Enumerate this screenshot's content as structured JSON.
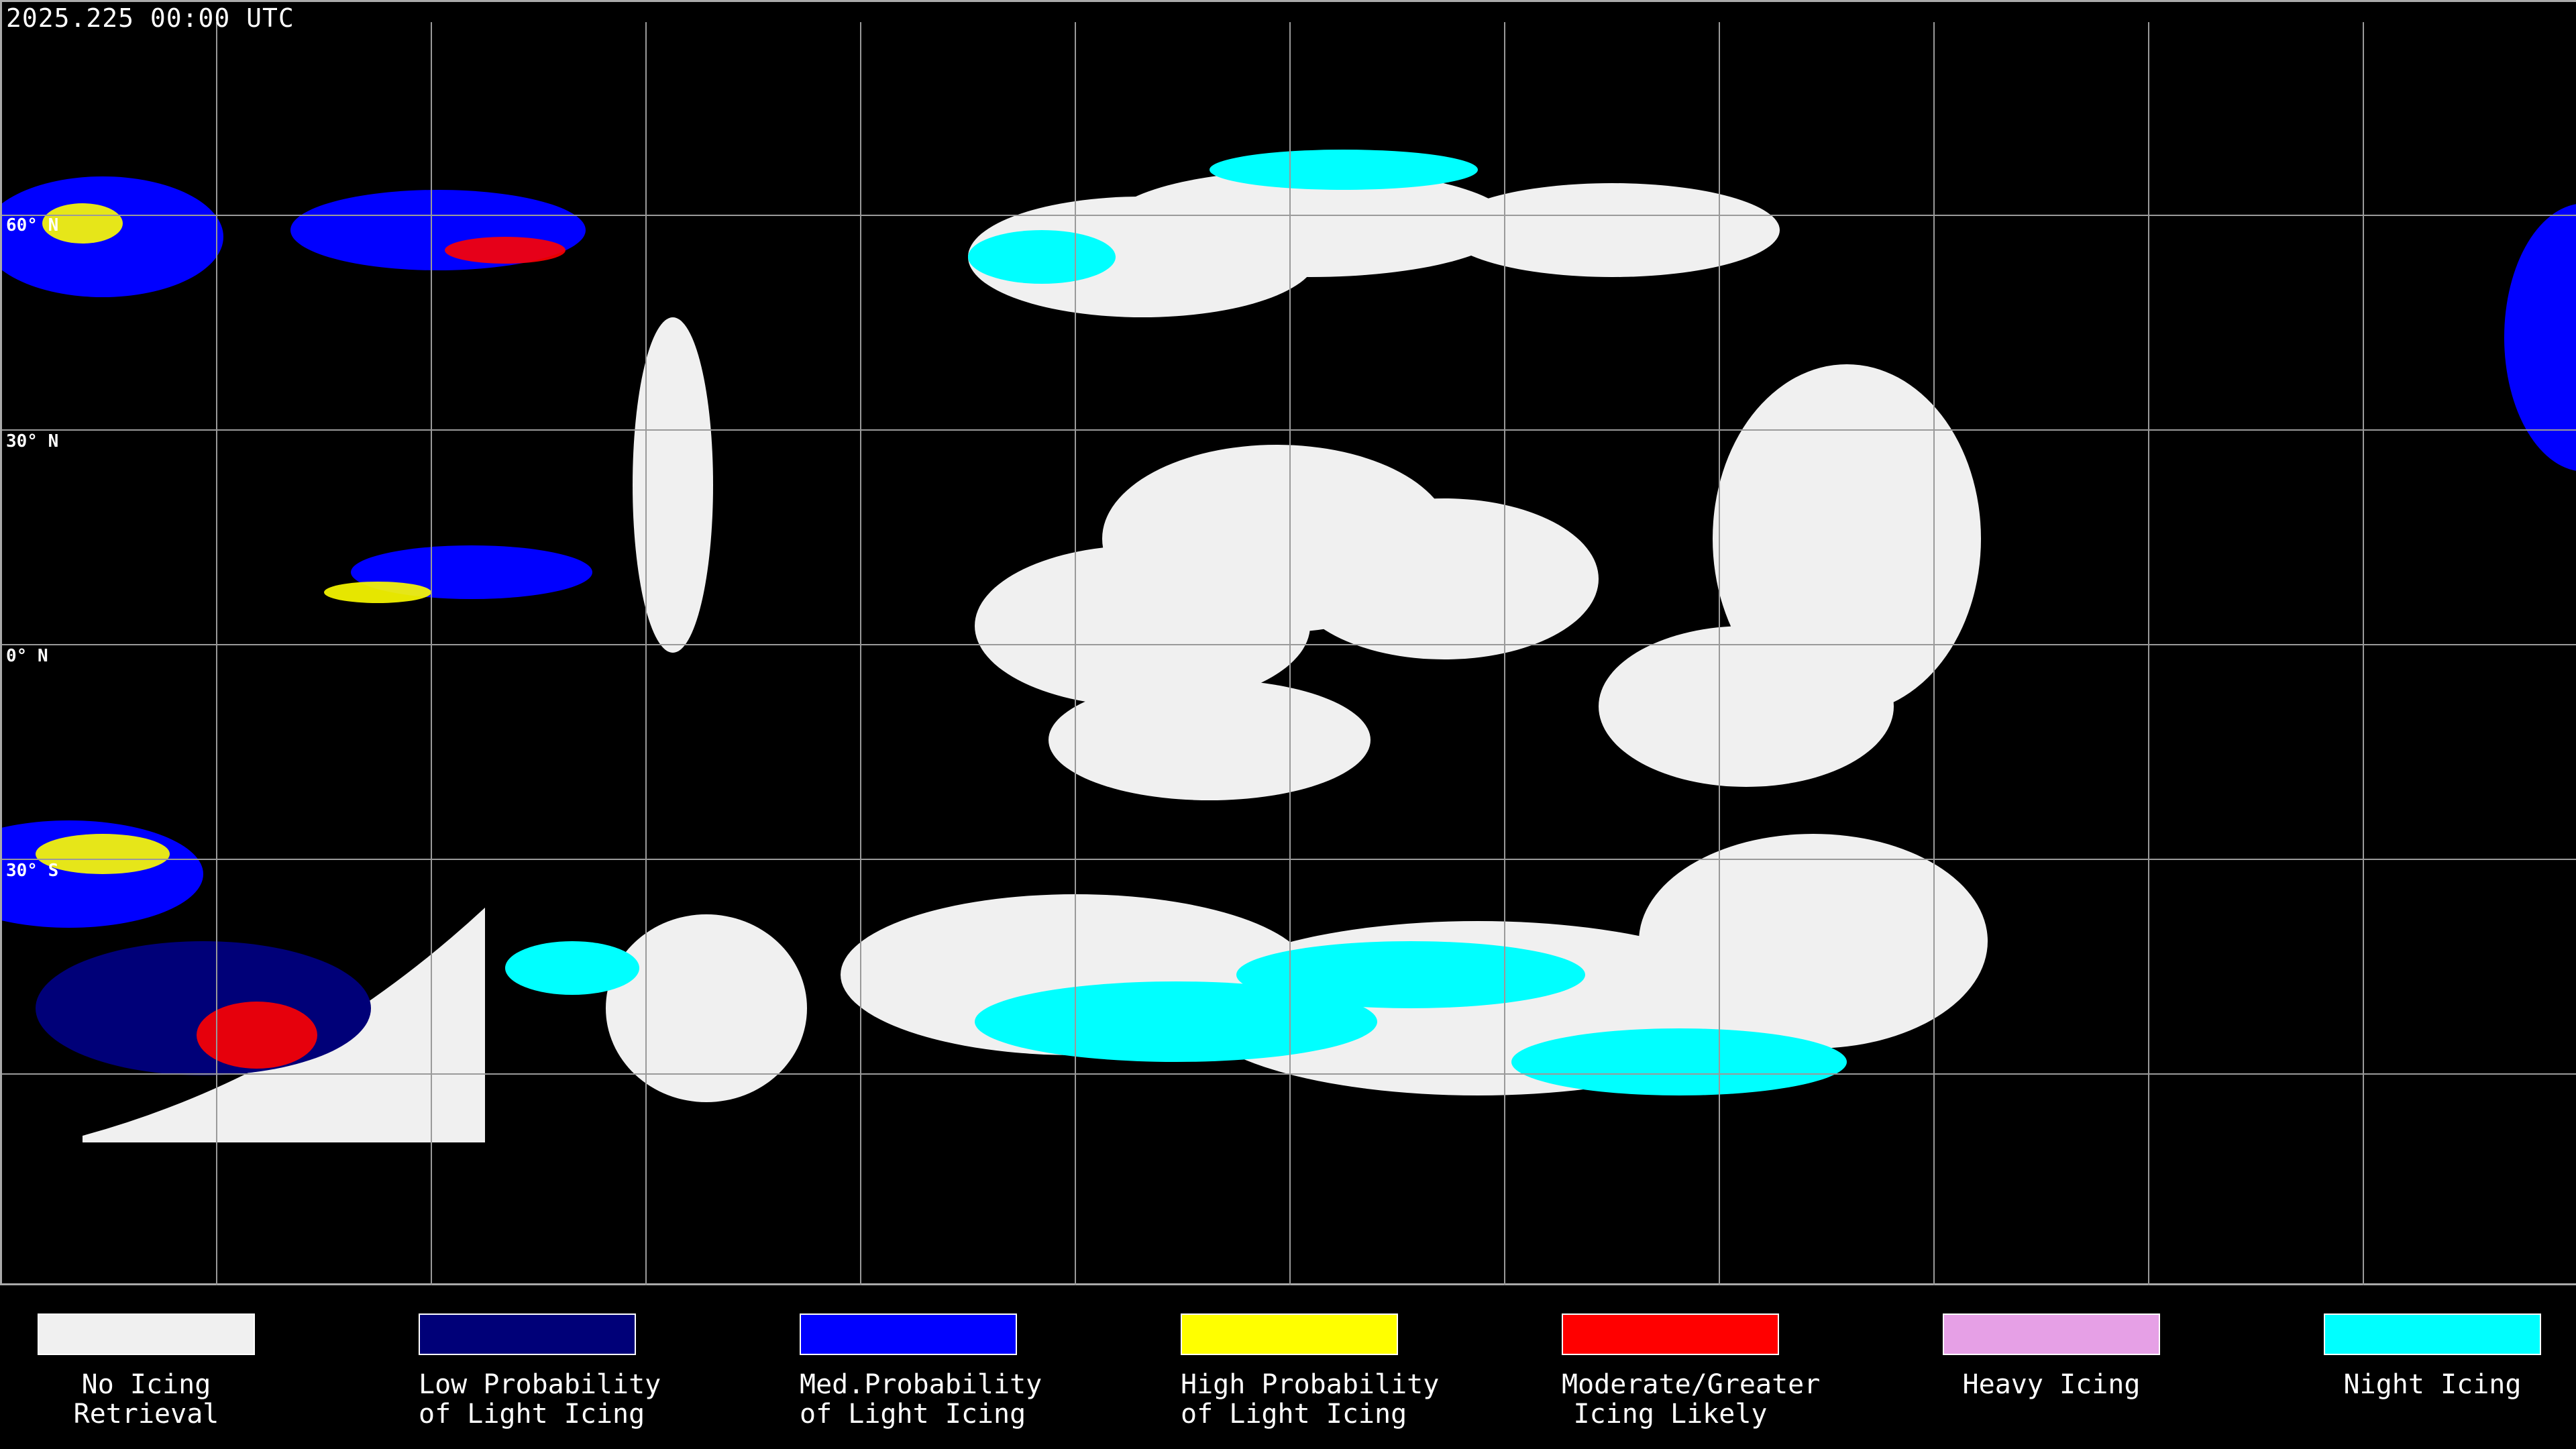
{
  "header": {
    "title": "2025.225 00:00 UTC"
  },
  "map": {
    "latitude_labels": [
      "60° N",
      "30° N",
      "0° N",
      "30° S"
    ],
    "gridline_color": "#9a9a9a",
    "coastline_color": "#ffffff"
  },
  "legend": [
    {
      "line1": "No Icing",
      "line2": "Retrieval",
      "color": "#f0f0f0"
    },
    {
      "line1": "Low Probability",
      "line2": "of Light Icing",
      "color": "#000078"
    },
    {
      "line1": "Med.Probability",
      "line2": "of Light Icing",
      "color": "#0000ff"
    },
    {
      "line1": "High Probability",
      "line2": "of Light Icing",
      "color": "#ffff00"
    },
    {
      "line1": "Moderate/Greater",
      "line2": "Icing Likely",
      "color": "#ff0000"
    },
    {
      "line1": "Heavy Icing",
      "line2": "",
      "color": "#e6a0e6"
    },
    {
      "line1": "Night Icing",
      "line2": "",
      "color": "#00ffff"
    }
  ]
}
